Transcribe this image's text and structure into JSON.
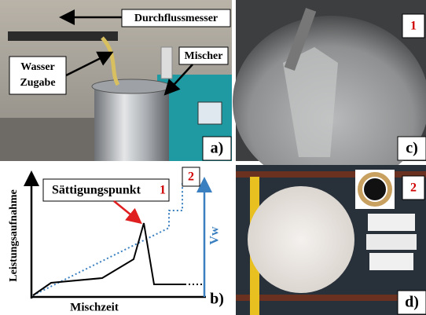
{
  "panels": {
    "a": {
      "label": "a)",
      "annotations": [
        "Durchflussmesser",
        "Wasser",
        "Zugabe",
        "Mischer"
      ]
    },
    "c": {
      "label": "c)",
      "marker": "1"
    },
    "b": {
      "label": "b)",
      "saturation": "Sättigungspunkt",
      "saturation_marker": "1",
      "marker": "2",
      "y_axis_label": "Leistungsaufnahme",
      "y2_axis_label": "Vw",
      "x_axis_label": "Mischzeit"
    },
    "d": {
      "label": "d)",
      "marker": "2"
    }
  }
}
